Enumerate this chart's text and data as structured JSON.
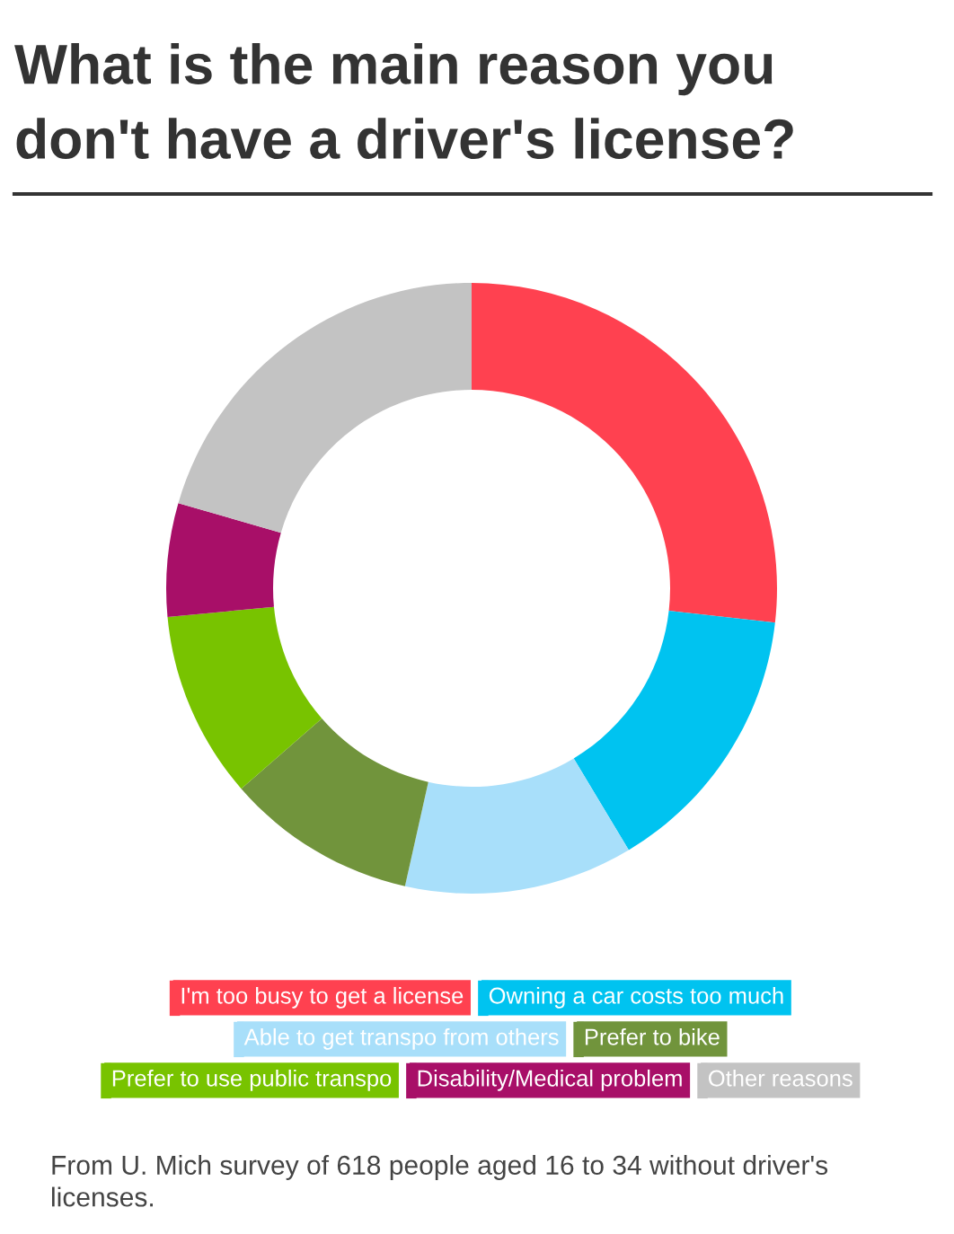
{
  "chart_data": {
    "type": "donut",
    "title": "What is the main reason you don't have a driver's license?",
    "categories": [
      "I'm too busy to get a license",
      "Owning a car costs too much",
      "Able to get transpo from others",
      "Prefer to bike",
      "Prefer to use public transpo",
      "Disability/Medical problem",
      "Other reasons"
    ],
    "values": [
      26.8,
      14.6,
      12.1,
      10.1,
      9.9,
      6.0,
      20.5
    ],
    "colors": [
      "#ff4150",
      "#00c3f0",
      "#a8dffa",
      "#71943c",
      "#78c300",
      "#a80f68",
      "#c3c3c3"
    ],
    "legend": "bottom",
    "annotations": [
      "From U. Mich survey of 618 people aged 16 to 34 without driver's licenses."
    ]
  }
}
